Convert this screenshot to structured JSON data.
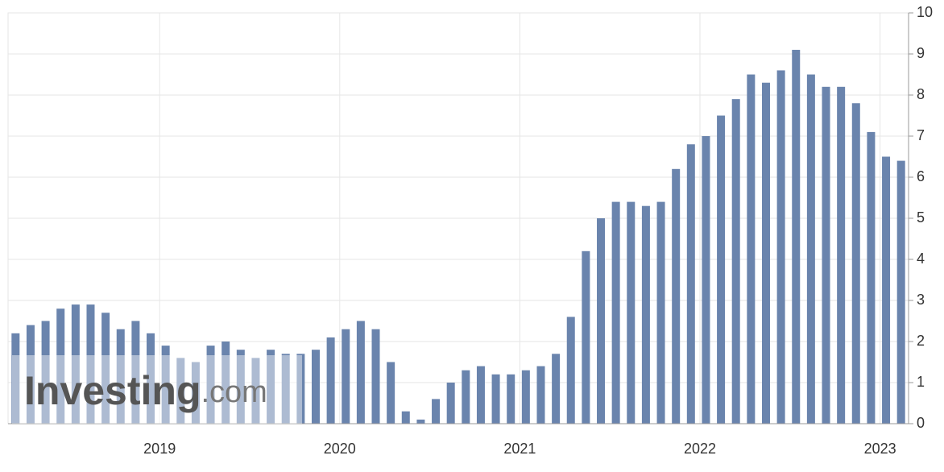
{
  "chart_data": {
    "type": "bar",
    "categories": [
      null,
      null,
      null,
      null,
      null,
      null,
      null,
      null,
      null,
      null,
      "2019",
      null,
      null,
      null,
      null,
      null,
      null,
      null,
      null,
      null,
      null,
      null,
      "2020",
      null,
      null,
      null,
      null,
      null,
      null,
      null,
      null,
      null,
      null,
      null,
      "2021",
      null,
      null,
      null,
      null,
      null,
      null,
      null,
      null,
      null,
      null,
      null,
      "2022",
      null,
      null,
      null,
      null,
      null,
      null,
      null,
      null,
      null,
      null,
      null,
      "2023",
      null
    ],
    "values": [
      2.2,
      2.4,
      2.5,
      2.8,
      2.9,
      2.9,
      2.7,
      2.3,
      2.5,
      2.2,
      1.9,
      1.6,
      1.5,
      1.9,
      2.0,
      1.8,
      1.6,
      1.8,
      1.7,
      1.7,
      1.8,
      2.1,
      2.3,
      2.5,
      2.3,
      1.5,
      0.3,
      0.1,
      0.6,
      1.0,
      1.3,
      1.4,
      1.2,
      1.2,
      1.3,
      1.4,
      1.7,
      2.6,
      4.2,
      5.0,
      5.4,
      5.4,
      5.3,
      5.4,
      6.2,
      6.8,
      7.0,
      7.5,
      7.9,
      8.5,
      8.3,
      8.6,
      9.1,
      8.5,
      8.2,
      8.2,
      7.8,
      7.1,
      6.5,
      6.4
    ],
    "color": "#6a84ad",
    "ylim": [
      0,
      10
    ],
    "yticks": [
      0,
      1,
      2,
      3,
      4,
      5,
      6,
      7,
      8,
      9,
      10
    ],
    "grid": true,
    "watermark": {
      "brand": "Investing",
      "suffix": ".com"
    }
  }
}
